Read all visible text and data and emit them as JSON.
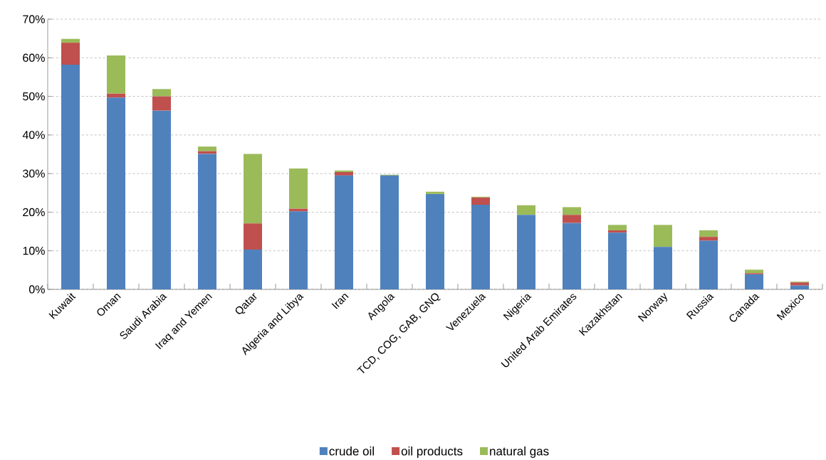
{
  "chart_data": {
    "type": "bar",
    "stacked": true,
    "categories": [
      "Kuwait",
      "Oman",
      "Saudi Arabia",
      "Iraq and Yemen",
      "Qatar",
      "Algeria and Libya",
      "Iran",
      "Angola",
      "TCD, COG, GAB, GNQ",
      "Venezuela",
      "Nigeria",
      "United Arab Emirates",
      "Kazakhstan",
      "Norway",
      "Russia",
      "Canada",
      "Mexico"
    ],
    "series": [
      {
        "name": "crude oil",
        "color": "#4f81bd",
        "values": [
          58.2,
          49.7,
          46.3,
          35.1,
          10.3,
          20.2,
          29.5,
          29.5,
          24.7,
          21.9,
          19.3,
          17.2,
          14.7,
          11.0,
          12.6,
          3.9,
          1.0
        ]
      },
      {
        "name": "oil products",
        "color": "#c0504d",
        "values": [
          5.7,
          1.0,
          3.7,
          0.7,
          6.8,
          0.7,
          0.9,
          0,
          0,
          1.9,
          0,
          2.1,
          0.6,
          0,
          1.0,
          0.3,
          0.8
        ]
      },
      {
        "name": "natural gas",
        "color": "#9bbb59",
        "values": [
          1.0,
          9.9,
          1.9,
          1.2,
          18.0,
          10.4,
          0.4,
          0.2,
          0.6,
          0.2,
          2.5,
          2.0,
          1.4,
          5.7,
          1.7,
          0.9,
          0.2
        ]
      }
    ],
    "ylim": [
      0,
      70
    ],
    "yticks": [
      {
        "value": 0,
        "label": "0%"
      },
      {
        "value": 10,
        "label": "10%"
      },
      {
        "value": 20,
        "label": "20%"
      },
      {
        "value": 30,
        "label": "30%"
      },
      {
        "value": 40,
        "label": "40%"
      },
      {
        "value": 50,
        "label": "50%"
      },
      {
        "value": 60,
        "label": "60%"
      },
      {
        "value": 70,
        "label": "70%"
      }
    ],
    "grid": "y",
    "legend": "bottom"
  }
}
